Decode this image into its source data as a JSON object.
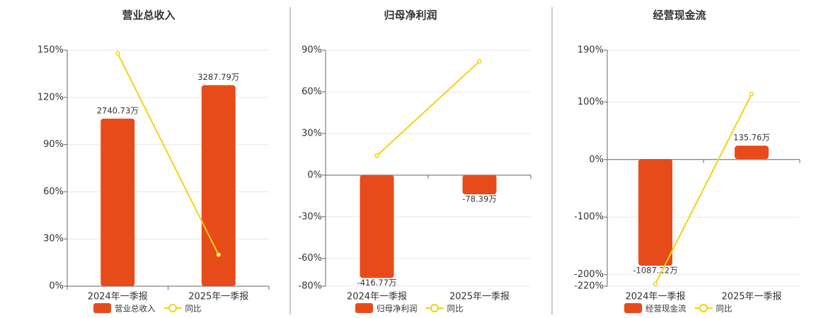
{
  "chart_data": [
    {
      "type": "combo",
      "title": "营业总收入",
      "categories": [
        "2024年一季报",
        "2025年一季报"
      ],
      "ylim": [
        0,
        150
      ],
      "yticks": [
        {
          "value": 0,
          "label": "0%"
        },
        {
          "value": 30,
          "label": "30%"
        },
        {
          "value": 60,
          "label": "60%"
        },
        {
          "value": 90,
          "label": "90%"
        },
        {
          "value": 120,
          "label": "120%"
        },
        {
          "value": 150,
          "label": "150%"
        }
      ],
      "y2lim": [
        0,
        3860
      ],
      "series": [
        {
          "name": "营业总收入",
          "type": "bar",
          "axis": "y2",
          "color": "#e84b1a",
          "values": [
            2740.73,
            3287.79
          ],
          "value_labels": [
            "2740.73万",
            "3287.79万"
          ]
        },
        {
          "name": "同比",
          "type": "line",
          "color": "#f2d313",
          "values": [
            148,
            20
          ]
        }
      ]
    },
    {
      "type": "combo",
      "title": "归母净利润",
      "categories": [
        "2024年一季报",
        "2025年一季报"
      ],
      "ylim": [
        -80,
        90
      ],
      "yticks": [
        {
          "value": -80,
          "label": "-80%"
        },
        {
          "value": -60,
          "label": "-60%"
        },
        {
          "value": -30,
          "label": "-30%"
        },
        {
          "value": 0,
          "label": "0%"
        },
        {
          "value": 30,
          "label": "30%"
        },
        {
          "value": 60,
          "label": "60%"
        },
        {
          "value": 90,
          "label": "90%"
        }
      ],
      "y2lim": [
        -450,
        505
      ],
      "series": [
        {
          "name": "归母净利润",
          "type": "bar",
          "axis": "y2",
          "color": "#e84b1a",
          "values": [
            -416.77,
            -78.39
          ],
          "value_labels": [
            "-416.77万",
            "-78.39万"
          ]
        },
        {
          "name": "同比",
          "type": "line",
          "color": "#f2d313",
          "values": [
            14,
            82
          ]
        }
      ]
    },
    {
      "type": "combo",
      "title": "经营现金流",
      "categories": [
        "2024年一季报",
        "2025年一季报"
      ],
      "ylim": [
        -220,
        190
      ],
      "yticks": [
        {
          "value": -220,
          "label": "-220%"
        },
        {
          "value": -200,
          "label": "-200%"
        },
        {
          "value": -100,
          "label": "-100%"
        },
        {
          "value": 0,
          "label": "0%"
        },
        {
          "value": 100,
          "label": "100%"
        },
        {
          "value": 190,
          "label": "190%"
        }
      ],
      "y2lim": [
        -1296,
        1109
      ],
      "series": [
        {
          "name": "经营现金流",
          "type": "bar",
          "axis": "y2",
          "color": "#e84b1a",
          "values": [
            -1087.22,
            135.76
          ],
          "value_labels": [
            "-1087.22万",
            "135.76万"
          ]
        },
        {
          "name": "同比",
          "type": "line",
          "color": "#f2d313",
          "values": [
            -216,
            114
          ]
        }
      ]
    }
  ]
}
